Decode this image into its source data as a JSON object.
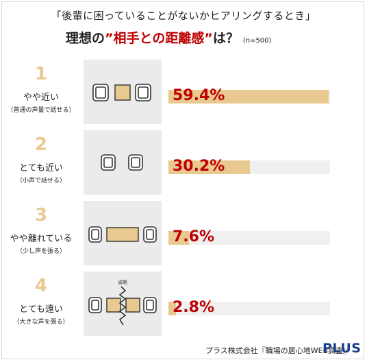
{
  "header": {
    "subtitle": "「後輩に困っていることがないかヒアリングするとき」",
    "title_pre": "理想の",
    "title_highlight": "”相手との距離感”",
    "title_post": "は？",
    "sample": "(n=500)"
  },
  "rows": [
    {
      "rank": "1",
      "label": "やや近い",
      "note": "（普通の声量で話せる）",
      "percent": "59.4%"
    },
    {
      "rank": "2",
      "label": "とても近い",
      "note": "（小声で話せる）",
      "percent": "30.2%"
    },
    {
      "rank": "3",
      "label": "やや離れている",
      "note": "（少し声を張る）",
      "percent": "7.6%"
    },
    {
      "rank": "4",
      "label": "とても遠い",
      "note": "（大きな声を張る）",
      "percent": "2.8%"
    }
  ],
  "illustration": {
    "omitted_label": "省略"
  },
  "footer": {
    "source": "プラス株式会社『職場の居心地WEB調査』",
    "logo": "PLUS"
  },
  "colors": {
    "accent_bar": "#e8c98f",
    "percent_text": "#c00000",
    "logo": "#1c3f8a",
    "panel": "#ebebeb"
  },
  "chart_data": {
    "type": "bar",
    "orientation": "horizontal",
    "categories": [
      "やや近い",
      "とても近い",
      "やや離れている",
      "とても遠い"
    ],
    "values": [
      59.4,
      30.2,
      7.6,
      2.8
    ],
    "unit": "%",
    "title": "理想の”相手との距離感”は？",
    "xlim": [
      0,
      60
    ]
  }
}
